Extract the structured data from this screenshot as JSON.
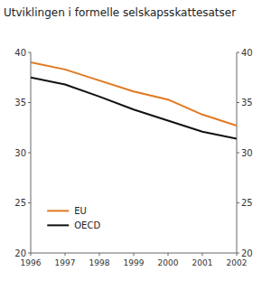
{
  "chart_data": {
    "type": "line",
    "title": "Utviklingen i formelle selskapsskattesatser",
    "x": [
      1996,
      1997,
      1998,
      1999,
      2000,
      2001,
      2002
    ],
    "series": [
      {
        "name": "EU",
        "color": "#e07820",
        "values": [
          39.0,
          38.3,
          37.2,
          36.1,
          35.3,
          33.8,
          32.7
        ]
      },
      {
        "name": "OECD",
        "color": "#111111",
        "values": [
          37.5,
          36.8,
          35.6,
          34.3,
          33.2,
          32.1,
          31.4
        ]
      }
    ],
    "xlim": [
      1996,
      2002
    ],
    "xticks": [
      1996,
      1997,
      1998,
      1999,
      2000,
      2001,
      2002
    ],
    "ylim": [
      20,
      40
    ],
    "yticks": [
      20,
      25,
      30,
      35,
      40
    ],
    "y2lim": [
      20,
      40
    ],
    "y2ticks": [
      20,
      25,
      30,
      35,
      40
    ],
    "grid": false,
    "legend": "lower left"
  }
}
